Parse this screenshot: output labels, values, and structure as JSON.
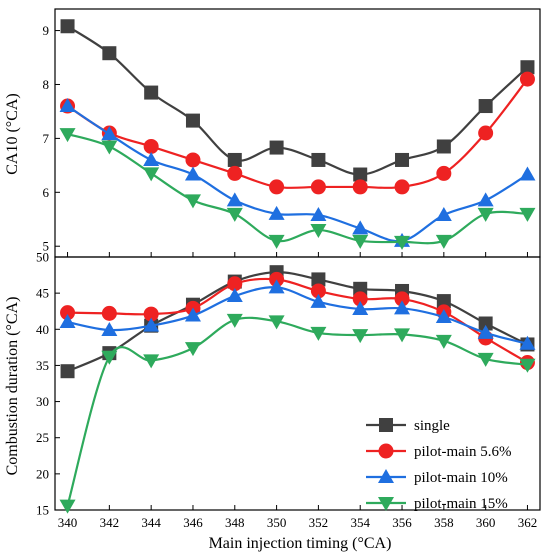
{
  "chart_data": [
    {
      "type": "line",
      "ylabel": "CA10 (°CA)",
      "xlabel": "",
      "xlim": [
        339.4,
        362.6
      ],
      "ylim": [
        4.8,
        9.4
      ],
      "xticks": [
        340,
        342,
        344,
        346,
        348,
        350,
        352,
        354,
        356,
        358,
        360,
        362
      ],
      "yticks": [
        5,
        6,
        7,
        8,
        9
      ],
      "x": [
        340,
        342,
        344,
        346,
        348,
        350,
        352,
        354,
        356,
        358,
        360,
        362
      ],
      "series": [
        {
          "name": "single",
          "color": "#404040",
          "marker": "square",
          "values": [
            9.08,
            8.58,
            7.85,
            7.33,
            6.6,
            6.83,
            6.6,
            6.33,
            6.6,
            6.85,
            7.6,
            8.32
          ]
        },
        {
          "name": "pilot-main 5.6%",
          "color": "#ee2222",
          "marker": "circle",
          "values": [
            7.6,
            7.1,
            6.85,
            6.6,
            6.35,
            6.1,
            6.1,
            6.1,
            6.1,
            6.35,
            7.1,
            8.1
          ]
        },
        {
          "name": "pilot-main 10%",
          "color": "#1f6fe0",
          "marker": "triangle-up",
          "values": [
            7.6,
            7.08,
            6.6,
            6.33,
            5.85,
            5.6,
            5.58,
            5.33,
            5.1,
            5.58,
            5.85,
            6.33
          ]
        },
        {
          "name": "pilot-main 15%",
          "color": "#2eaa5c",
          "marker": "triangle-down",
          "values": [
            7.08,
            6.85,
            6.35,
            5.85,
            5.6,
            5.1,
            5.3,
            5.1,
            5.08,
            5.1,
            5.6,
            5.6
          ]
        }
      ]
    },
    {
      "type": "line",
      "ylabel": "Combustion duration (°CA)",
      "xlabel": "Main injection timing (°CA)",
      "xlim": [
        339.4,
        362.6
      ],
      "ylim": [
        15,
        50
      ],
      "xticks": [
        340,
        342,
        344,
        346,
        348,
        350,
        352,
        354,
        356,
        358,
        360,
        362
      ],
      "yticks": [
        15,
        20,
        25,
        30,
        35,
        40,
        45,
        50
      ],
      "x": [
        340,
        342,
        344,
        346,
        348,
        350,
        352,
        354,
        356,
        358,
        360,
        362
      ],
      "legend_position": "bottom-right",
      "series": [
        {
          "name": "single",
          "color": "#404040",
          "marker": "square",
          "values": [
            34.2,
            36.7,
            40.5,
            43.4,
            46.6,
            47.9,
            46.9,
            45.6,
            45.3,
            43.9,
            40.8,
            37.9
          ]
        },
        {
          "name": "pilot-main 5.6%",
          "color": "#ee2222",
          "marker": "circle",
          "values": [
            42.3,
            42.2,
            42.1,
            42.9,
            46.3,
            46.9,
            45.3,
            44.2,
            44.2,
            42.4,
            38.8,
            35.4
          ]
        },
        {
          "name": "pilot-main 10%",
          "color": "#1f6fe0",
          "marker": "triangle-up",
          "values": [
            41.0,
            39.9,
            40.5,
            41.9,
            44.6,
            45.8,
            43.8,
            42.8,
            42.9,
            41.7,
            39.5,
            38.0
          ]
        },
        {
          "name": "pilot-main 15%",
          "color": "#2eaa5c",
          "marker": "triangle-down",
          "values": [
            15.6,
            36.2,
            35.7,
            37.4,
            41.3,
            41.1,
            39.5,
            39.2,
            39.3,
            38.4,
            35.9,
            35.1
          ]
        }
      ]
    }
  ]
}
